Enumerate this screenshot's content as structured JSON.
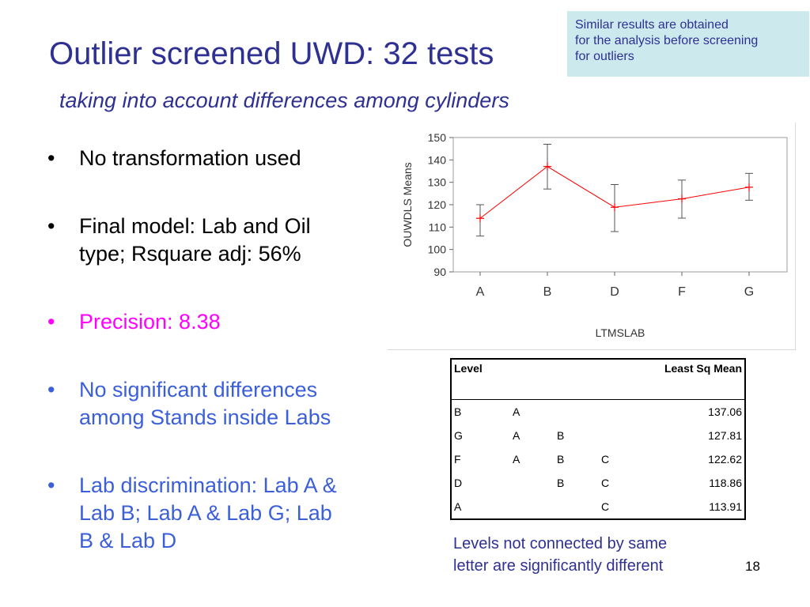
{
  "slide": {
    "title": "Outlier screened UWD: 32 tests",
    "subtitle": "taking into account differences among cylinders",
    "note": [
      "Similar results are obtained",
      "for the analysis before screening",
      "for outliers"
    ],
    "bullets": [
      {
        "lines": [
          "No transformation used"
        ],
        "color": "#000000"
      },
      {
        "lines": [
          "Final model: Lab and Oil",
          "type; Rsquare adj: 56%"
        ],
        "color": "#000000"
      },
      {
        "lines": [
          "Precision: 8.38"
        ],
        "color": "#ff00ff"
      },
      {
        "lines": [
          "No significant differences",
          "among Stands inside Labs"
        ],
        "color": "#3b5fd8"
      },
      {
        "lines": [
          "Lab discrimination: Lab A &",
          "Lab B; Lab A & Lab G; Lab",
          "B & Lab D"
        ],
        "color": "#3b5fd8"
      }
    ],
    "bullet_symbol": "•",
    "footnote": [
      "Levels not connected by same",
      "letter are significantly different"
    ],
    "page_number": "18"
  },
  "table": {
    "headers": [
      "Level",
      "Least Sq Mean"
    ],
    "rows": [
      {
        "level": "B",
        "g1": "A",
        "g2": "",
        "g3": "",
        "mean": "137.06"
      },
      {
        "level": "G",
        "g1": "A",
        "g2": "B",
        "g3": "",
        "mean": "127.81"
      },
      {
        "level": "F",
        "g1": "A",
        "g2": "B",
        "g3": "C",
        "mean": "122.62"
      },
      {
        "level": "D",
        "g1": "",
        "g2": "B",
        "g3": "C",
        "mean": "118.86"
      },
      {
        "level": "A",
        "g1": "",
        "g2": "",
        "g3": "C",
        "mean": "113.91"
      }
    ]
  },
  "chart_data": {
    "type": "line",
    "categories": [
      "A",
      "B",
      "D",
      "F",
      "G"
    ],
    "values": [
      113.91,
      137.06,
      118.86,
      122.62,
      127.81
    ],
    "error_low": [
      106,
      127,
      108,
      114,
      122
    ],
    "error_high": [
      120,
      147,
      129,
      131,
      134
    ],
    "xlabel": "LTMSLAB",
    "ylabel": "OUWDLS Means",
    "ylim": [
      90,
      150
    ],
    "yticks": [
      90,
      100,
      110,
      120,
      130,
      140,
      150
    ],
    "line_color": "#ff0000",
    "grid": false
  }
}
